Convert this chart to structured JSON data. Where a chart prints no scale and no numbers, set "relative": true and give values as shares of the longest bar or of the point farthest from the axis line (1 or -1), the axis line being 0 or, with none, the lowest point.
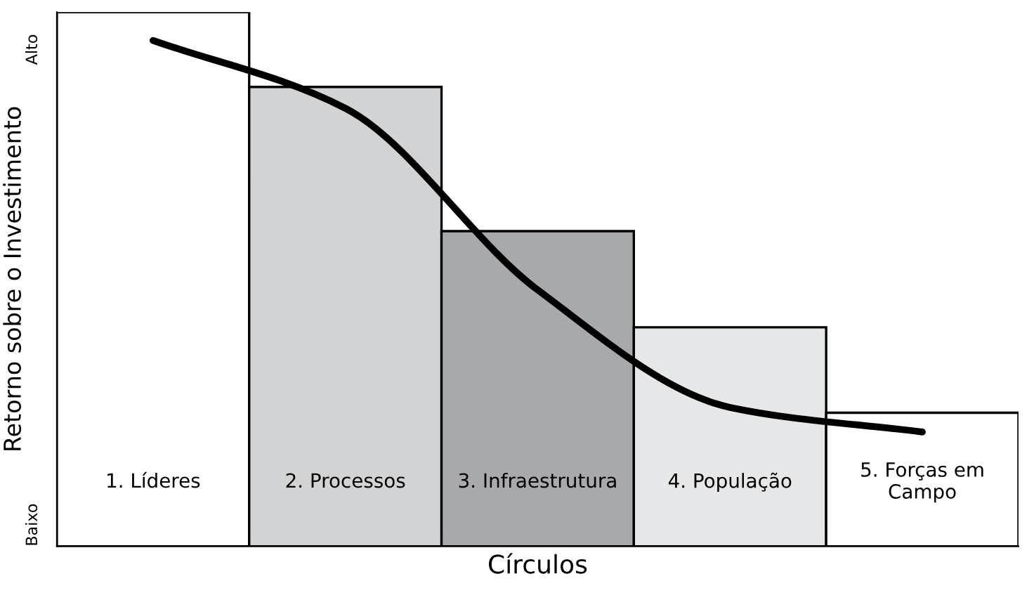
{
  "chart_data": {
    "type": "bar",
    "relative": true,
    "xlabel": "Círculos",
    "ylabel": "Retorno sobre o Investimento",
    "annotations": [
      "Alto",
      "Baixo"
    ],
    "categories": [
      "1. Líderes",
      "2. Processos",
      "3. Infraestrutura",
      "4. População",
      "5. Forças em\nCampo"
    ],
    "series": [
      {
        "type": "bar",
        "colors": [
          "#ffffff",
          "#d1d3d4",
          "#a7a9ac",
          "#e6e7e8",
          "#ffffff"
        ],
        "values": [
          1,
          0.86,
          0.59,
          0.41,
          0.25
        ]
      },
      {
        "type": "line",
        "color": "#000000",
        "values": [
          0.947,
          0.82,
          0.48,
          0.26,
          0.214
        ]
      }
    ]
  }
}
